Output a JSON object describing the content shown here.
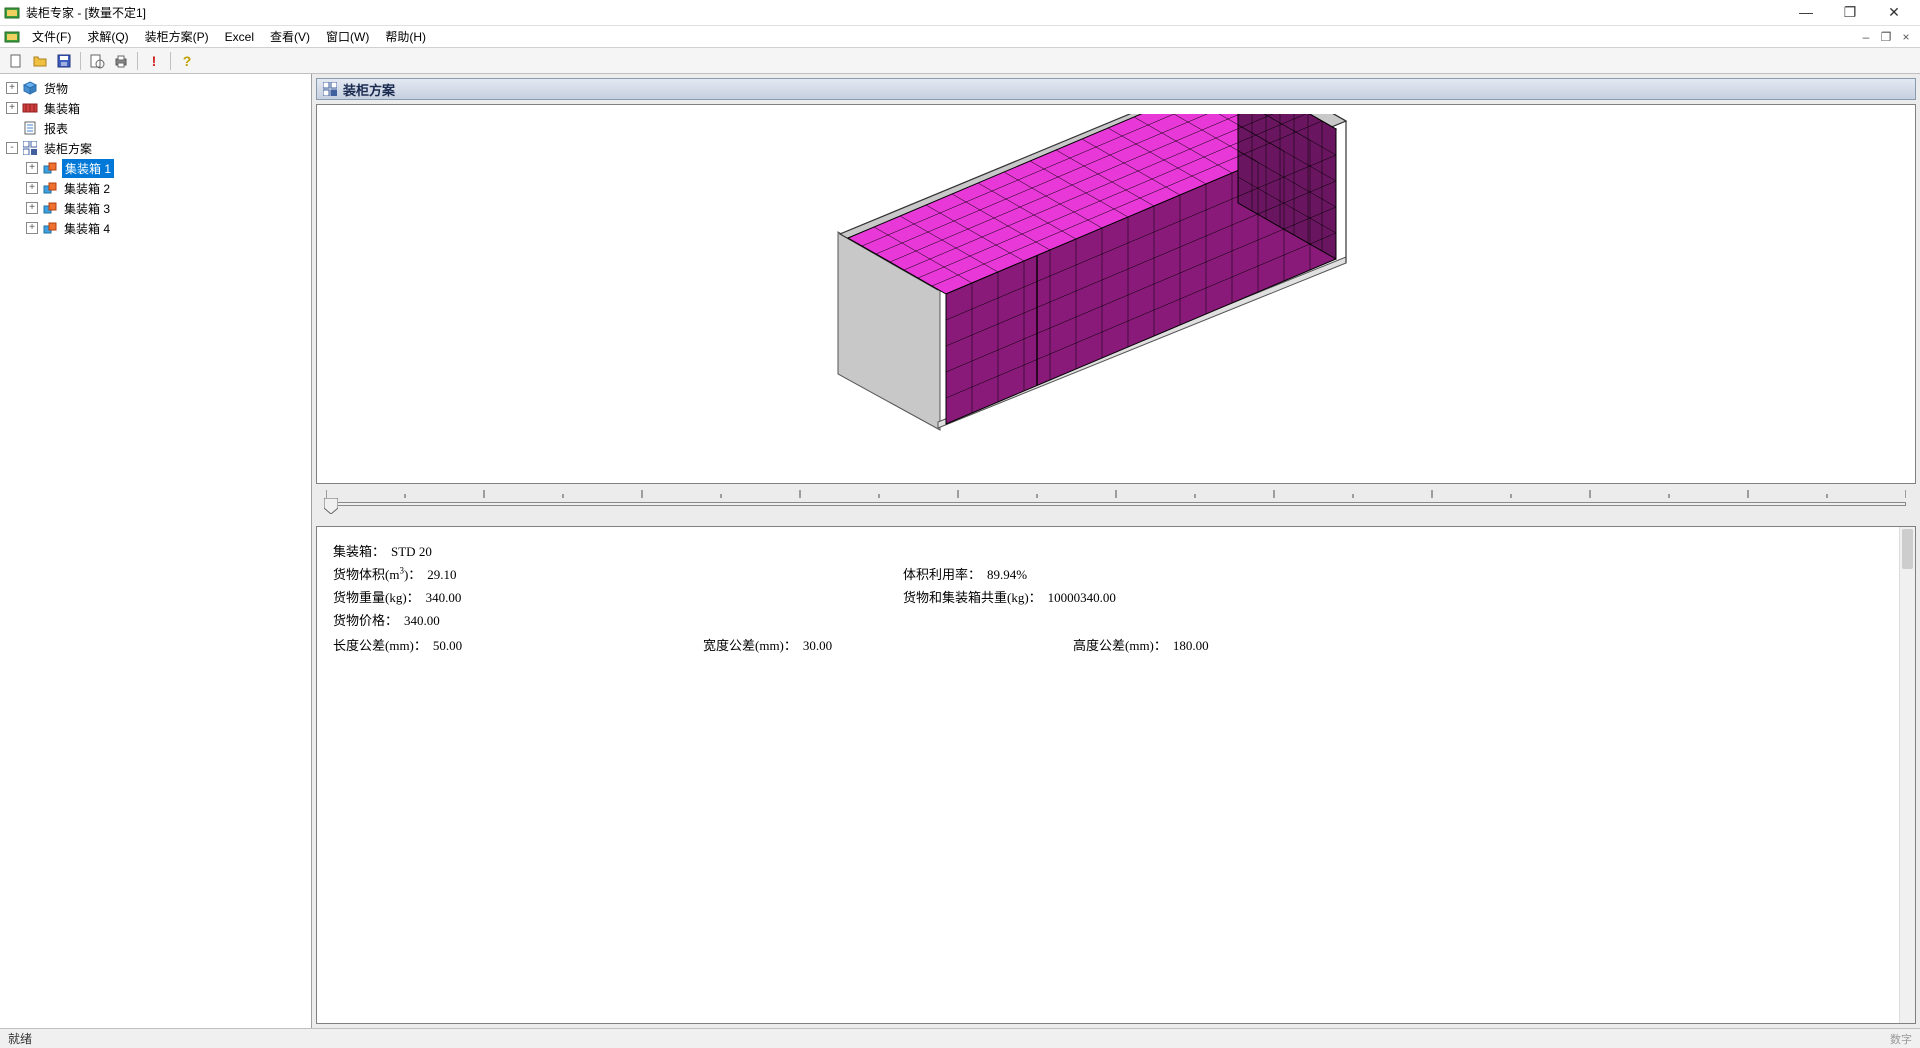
{
  "window": {
    "title": "装柜专家 - [数量不定1]",
    "controls": {
      "minimize": "—",
      "maximize": "❐",
      "close": "✕"
    }
  },
  "mdi_controls": {
    "minimize": "–",
    "restore": "❐",
    "close": "×"
  },
  "menubar": {
    "items": [
      "文件(F)",
      "求解(Q)",
      "装柜方案(P)",
      "Excel",
      "查看(V)",
      "窗口(W)",
      "帮助(H)"
    ]
  },
  "toolbar": {
    "buttons": [
      "new",
      "open",
      "save",
      "sep",
      "preview",
      "print",
      "sep",
      "alert",
      "sep",
      "help"
    ]
  },
  "tree": {
    "nodes": [
      {
        "label": "货物",
        "icon": "cube-blue",
        "indent": 0,
        "expander": "+"
      },
      {
        "label": "集装箱",
        "icon": "container-red",
        "indent": 0,
        "expander": "+"
      },
      {
        "label": "报表",
        "icon": "report",
        "indent": 0,
        "expander": null
      },
      {
        "label": "装柜方案",
        "icon": "plan",
        "indent": 0,
        "expander": "-"
      },
      {
        "label": "集装箱 1",
        "icon": "box-multi",
        "indent": 1,
        "expander": "+",
        "selected": true
      },
      {
        "label": "集装箱 2",
        "icon": "box-multi",
        "indent": 1,
        "expander": "+"
      },
      {
        "label": "集装箱 3",
        "icon": "box-multi",
        "indent": 1,
        "expander": "+"
      },
      {
        "label": "集装箱 4",
        "icon": "box-multi",
        "indent": 1,
        "expander": "+"
      }
    ]
  },
  "panel": {
    "title": "装柜方案"
  },
  "container3d": {
    "top_color": "#e838d8",
    "front_color": "#8a1a7a",
    "side_color": "#6a1560",
    "wall_color": "#c8c8c8",
    "floor_color": "#e0e0e0",
    "grid_color": "#000000",
    "cols_long": 15,
    "cols_wide": 7,
    "rows_tall": 5
  },
  "info": {
    "container_label": "集装箱：",
    "container_value": "STD 20",
    "volume_label": "货物体积(m",
    "volume_sup": "3",
    "volume_label2": ")：",
    "volume_value": "29.10",
    "util_label": "体积利用率：",
    "util_value": "89.94%",
    "weight_label": "货物重量(kg)：",
    "weight_value": "340.00",
    "total_weight_label": "货物和集装箱共重(kg)：",
    "total_weight_value": "10000340.00",
    "price_label": "货物价格：",
    "price_value": "340.00",
    "len_tol_label": "长度公差(mm)：",
    "len_tol_value": "50.00",
    "wid_tol_label": "宽度公差(mm)：",
    "wid_tol_value": "30.00",
    "hgt_tol_label": "高度公差(mm)：",
    "hgt_tol_value": "180.00"
  },
  "statusbar": {
    "text": "就绪",
    "right": "数字"
  }
}
